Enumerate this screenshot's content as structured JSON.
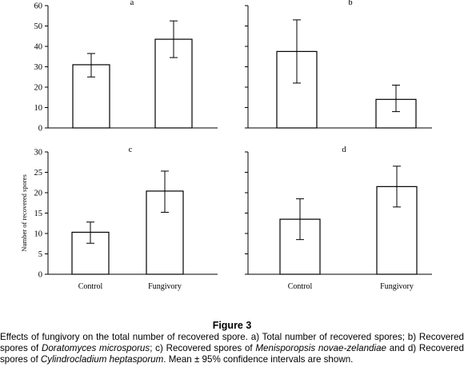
{
  "chart_data": [
    {
      "type": "bar",
      "panel_label": "a",
      "categories": [
        "Control",
        "Fungivory"
      ],
      "values": [
        31,
        43.5
      ],
      "error_low": [
        25,
        34.5
      ],
      "error_high": [
        36.5,
        52.5
      ],
      "ylim": [
        0,
        60
      ],
      "yticks": [
        0,
        10,
        20,
        30,
        40,
        50,
        60
      ],
      "ylabel": "",
      "grid": false
    },
    {
      "type": "bar",
      "panel_label": "b",
      "categories": [
        "Control",
        "Fungivory"
      ],
      "values": [
        37.5,
        14
      ],
      "error_low": [
        22,
        8
      ],
      "error_high": [
        53,
        21
      ],
      "ylim": [
        0,
        60
      ],
      "yticks": [],
      "ylabel": "",
      "grid": false
    },
    {
      "type": "bar",
      "panel_label": "c",
      "categories": [
        "Control",
        "Fungivory"
      ],
      "values": [
        10.3,
        20.4
      ],
      "error_low": [
        7.6,
        15.2
      ],
      "error_high": [
        12.8,
        25.3
      ],
      "ylim": [
        0,
        30
      ],
      "yticks": [
        0,
        5,
        10,
        15,
        20,
        25,
        30
      ],
      "ylabel": "Number of recovered spores",
      "grid": false
    },
    {
      "type": "bar",
      "panel_label": "d",
      "categories": [
        "Control",
        "Fungivory"
      ],
      "values": [
        13.5,
        21.5
      ],
      "error_low": [
        8.5,
        16.5
      ],
      "error_high": [
        18.5,
        26.5
      ],
      "ylim": [
        0,
        30
      ],
      "yticks": [],
      "ylabel": "",
      "grid": false
    }
  ],
  "caption": {
    "title": "Figure 3",
    "segments": [
      {
        "text": "Effects of fungivory on the total number of recovered spore. a) Total number of recovered spores; b) Recovered spores of ",
        "italic": false
      },
      {
        "text": "Doratomyces microsporus",
        "italic": true
      },
      {
        "text": "; c) Recovered spores of ",
        "italic": false
      },
      {
        "text": "Menisporopsis novae-zelandiae",
        "italic": true
      },
      {
        "text": " and d) Recovered spores of ",
        "italic": false
      },
      {
        "text": "Cylindrocladium heptasporum",
        "italic": true
      },
      {
        "text": ". Mean ± 95% confidence intervals are shown.",
        "italic": false
      }
    ]
  }
}
